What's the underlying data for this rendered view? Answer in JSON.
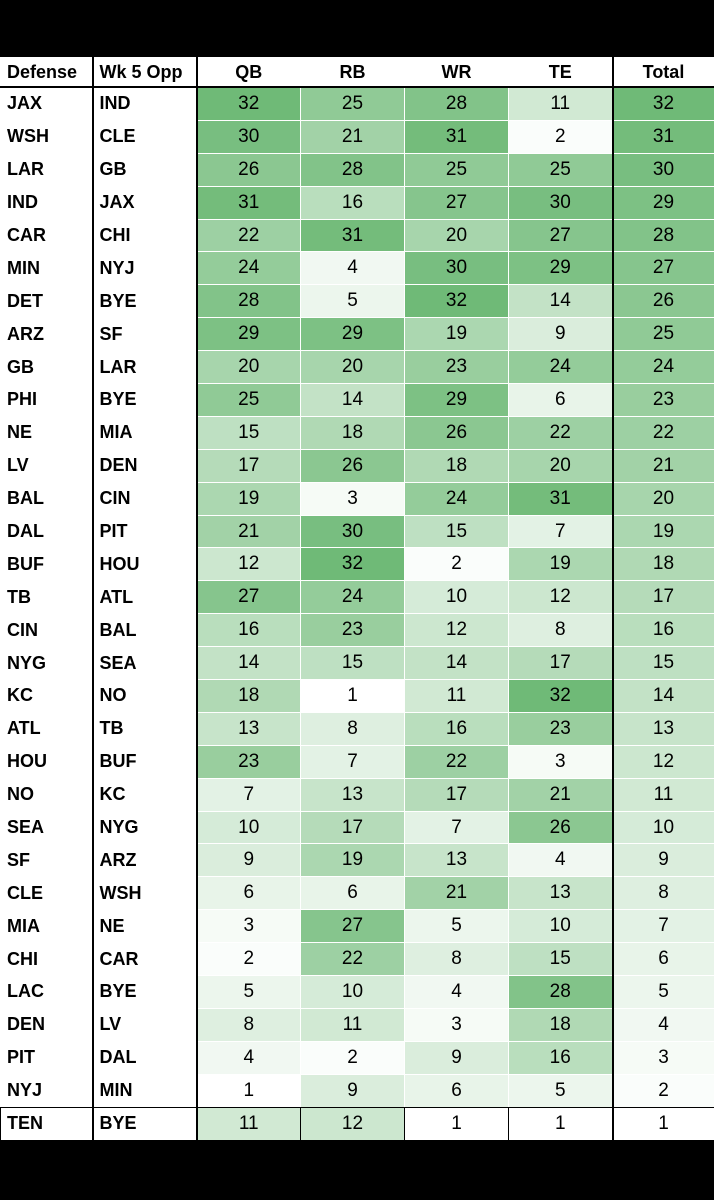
{
  "headers": [
    "Defense",
    "Wk 5 Opp",
    "QB",
    "RB",
    "WR",
    "TE",
    "Total"
  ],
  "scale_colors": {
    "low": "#ffffff",
    "high": "#6fba77"
  },
  "rows": [
    {
      "team": "JAX",
      "opp": "IND",
      "qb": 32,
      "rb": 25,
      "wr": 28,
      "te": 11,
      "total": 32
    },
    {
      "team": "WSH",
      "opp": "CLE",
      "qb": 30,
      "rb": 21,
      "wr": 31,
      "te": 2,
      "total": 31
    },
    {
      "team": "LAR",
      "opp": "GB",
      "qb": 26,
      "rb": 28,
      "wr": 25,
      "te": 25,
      "total": 30
    },
    {
      "team": "IND",
      "opp": "JAX",
      "qb": 31,
      "rb": 16,
      "wr": 27,
      "te": 30,
      "total": 29
    },
    {
      "team": "CAR",
      "opp": "CHI",
      "qb": 22,
      "rb": 31,
      "wr": 20,
      "te": 27,
      "total": 28
    },
    {
      "team": "MIN",
      "opp": "NYJ",
      "qb": 24,
      "rb": 4,
      "wr": 30,
      "te": 29,
      "total": 27
    },
    {
      "team": "DET",
      "opp": "BYE",
      "qb": 28,
      "rb": 5,
      "wr": 32,
      "te": 14,
      "total": 26
    },
    {
      "team": "ARZ",
      "opp": "SF",
      "qb": 29,
      "rb": 29,
      "wr": 19,
      "te": 9,
      "total": 25
    },
    {
      "team": "GB",
      "opp": "LAR",
      "qb": 20,
      "rb": 20,
      "wr": 23,
      "te": 24,
      "total": 24
    },
    {
      "team": "PHI",
      "opp": "BYE",
      "qb": 25,
      "rb": 14,
      "wr": 29,
      "te": 6,
      "total": 23
    },
    {
      "team": "NE",
      "opp": "MIA",
      "qb": 15,
      "rb": 18,
      "wr": 26,
      "te": 22,
      "total": 22
    },
    {
      "team": "LV",
      "opp": "DEN",
      "qb": 17,
      "rb": 26,
      "wr": 18,
      "te": 20,
      "total": 21
    },
    {
      "team": "BAL",
      "opp": "CIN",
      "qb": 19,
      "rb": 3,
      "wr": 24,
      "te": 31,
      "total": 20
    },
    {
      "team": "DAL",
      "opp": "PIT",
      "qb": 21,
      "rb": 30,
      "wr": 15,
      "te": 7,
      "total": 19
    },
    {
      "team": "BUF",
      "opp": "HOU",
      "qb": 12,
      "rb": 32,
      "wr": 2,
      "te": 19,
      "total": 18
    },
    {
      "team": "TB",
      "opp": "ATL",
      "qb": 27,
      "rb": 24,
      "wr": 10,
      "te": 12,
      "total": 17
    },
    {
      "team": "CIN",
      "opp": "BAL",
      "qb": 16,
      "rb": 23,
      "wr": 12,
      "te": 8,
      "total": 16
    },
    {
      "team": "NYG",
      "opp": "SEA",
      "qb": 14,
      "rb": 15,
      "wr": 14,
      "te": 17,
      "total": 15
    },
    {
      "team": "KC",
      "opp": "NO",
      "qb": 18,
      "rb": 1,
      "wr": 11,
      "te": 32,
      "total": 14
    },
    {
      "team": "ATL",
      "opp": "TB",
      "qb": 13,
      "rb": 8,
      "wr": 16,
      "te": 23,
      "total": 13
    },
    {
      "team": "HOU",
      "opp": "BUF",
      "qb": 23,
      "rb": 7,
      "wr": 22,
      "te": 3,
      "total": 12
    },
    {
      "team": "NO",
      "opp": "KC",
      "qb": 7,
      "rb": 13,
      "wr": 17,
      "te": 21,
      "total": 11
    },
    {
      "team": "SEA",
      "opp": "NYG",
      "qb": 10,
      "rb": 17,
      "wr": 7,
      "te": 26,
      "total": 10
    },
    {
      "team": "SF",
      "opp": "ARZ",
      "qb": 9,
      "rb": 19,
      "wr": 13,
      "te": 4,
      "total": 9
    },
    {
      "team": "CLE",
      "opp": "WSH",
      "qb": 6,
      "rb": 6,
      "wr": 21,
      "te": 13,
      "total": 8
    },
    {
      "team": "MIA",
      "opp": "NE",
      "qb": 3,
      "rb": 27,
      "wr": 5,
      "te": 10,
      "total": 7
    },
    {
      "team": "CHI",
      "opp": "CAR",
      "qb": 2,
      "rb": 22,
      "wr": 8,
      "te": 15,
      "total": 6
    },
    {
      "team": "LAC",
      "opp": "BYE",
      "qb": 5,
      "rb": 10,
      "wr": 4,
      "te": 28,
      "total": 5
    },
    {
      "team": "DEN",
      "opp": "LV",
      "qb": 8,
      "rb": 11,
      "wr": 3,
      "te": 18,
      "total": 4
    },
    {
      "team": "PIT",
      "opp": "DAL",
      "qb": 4,
      "rb": 2,
      "wr": 9,
      "te": 16,
      "total": 3
    },
    {
      "team": "NYJ",
      "opp": "MIN",
      "qb": 1,
      "rb": 9,
      "wr": 6,
      "te": 5,
      "total": 2
    },
    {
      "team": "TEN",
      "opp": "BYE",
      "qb": 11,
      "rb": 12,
      "wr": 1,
      "te": 1,
      "total": 1
    }
  ]
}
